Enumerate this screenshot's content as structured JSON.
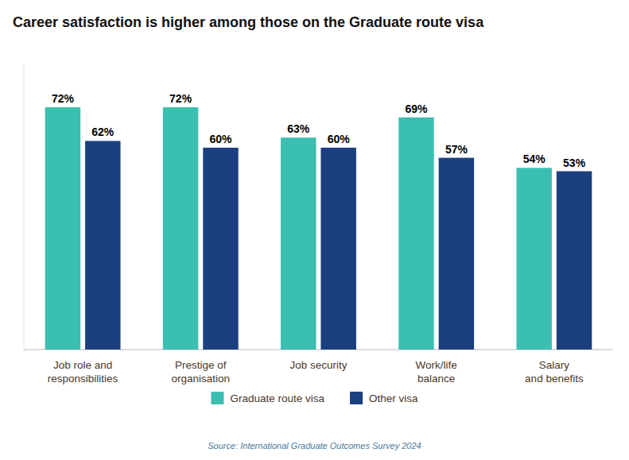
{
  "chart_data": {
    "type": "bar",
    "title": "Career satisfaction is higher among those on the Graduate route visa",
    "categories": [
      "Job role and\nresponsibilities",
      "Prestige of\norganisation",
      "Job security",
      "Work/life\nbalance",
      "Salary\nand benefits"
    ],
    "series": [
      {
        "name": "Graduate route visa",
        "color": "#3BBFB0",
        "values": [
          72,
          72,
          63,
          69,
          54
        ],
        "value_labels": [
          "72%",
          "72%",
          "63%",
          "69%",
          "54%"
        ]
      },
      {
        "name": "Other visa",
        "color": "#1B4080",
        "values": [
          62,
          60,
          60,
          57,
          53
        ],
        "value_labels": [
          "62%",
          "60%",
          "60%",
          "57%",
          "53%"
        ]
      }
    ],
    "ylim": [
      0,
      85
    ],
    "data_labels": true,
    "tick_labels": "x",
    "legend": "bottom",
    "grid": false,
    "source": "Source: International Graduate Outcomes Survey 2024"
  }
}
